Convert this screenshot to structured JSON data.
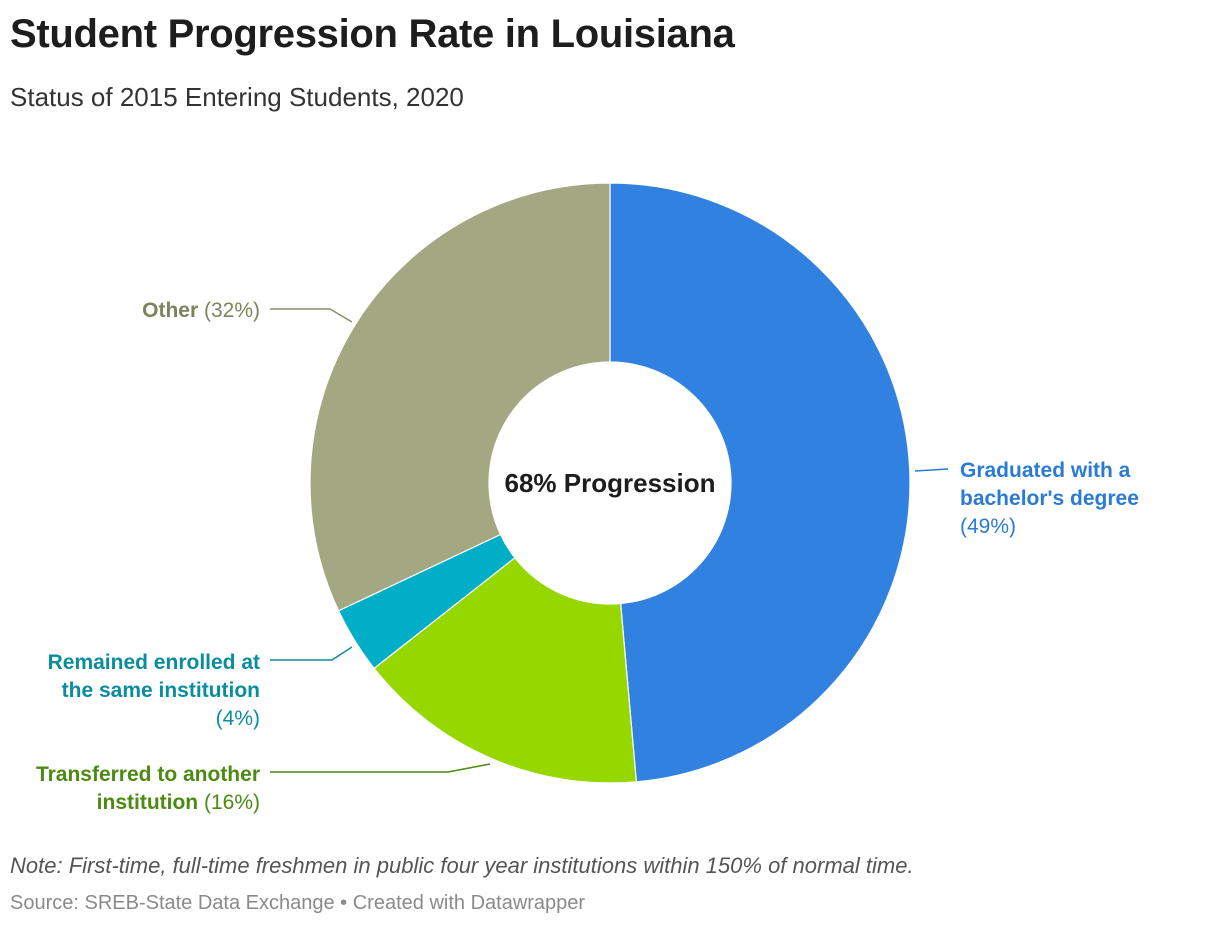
{
  "chart_data": {
    "type": "pie",
    "donut": true,
    "title": "Student Progression Rate in Louisiana",
    "subtitle": "Status of 2015 Entering Students, 2020",
    "center_label": "68% Progression",
    "slices": [
      {
        "id": "graduated",
        "label_lines": [
          "Graduated with a",
          "bachelor's degree"
        ],
        "pct_text": "(49%)",
        "value": 48.6,
        "color": "#3182e0",
        "label_color": "#2b7bd6"
      },
      {
        "id": "transferred",
        "label_lines": [
          "Transferred to another",
          "institution"
        ],
        "pct_text": "(16%)",
        "value": 15.8,
        "color": "#96d700",
        "label_color": "#4c8a12"
      },
      {
        "id": "enrolled",
        "label_lines": [
          "Remained enrolled at",
          "the same institution"
        ],
        "pct_text": "(4%)",
        "value": 3.6,
        "color": "#00aec8",
        "label_color": "#0a8d9e"
      },
      {
        "id": "other",
        "label_lines": [
          "Other"
        ],
        "pct_text": "(32%)",
        "value": 32.0,
        "color": "#a3a883",
        "label_color": "#7d835c"
      }
    ]
  },
  "note": "Note: First-time, full-time freshmen in public four year institutions within 150% of normal time.",
  "source": "Source: SREB-State Data Exchange • Created with Datawrapper"
}
